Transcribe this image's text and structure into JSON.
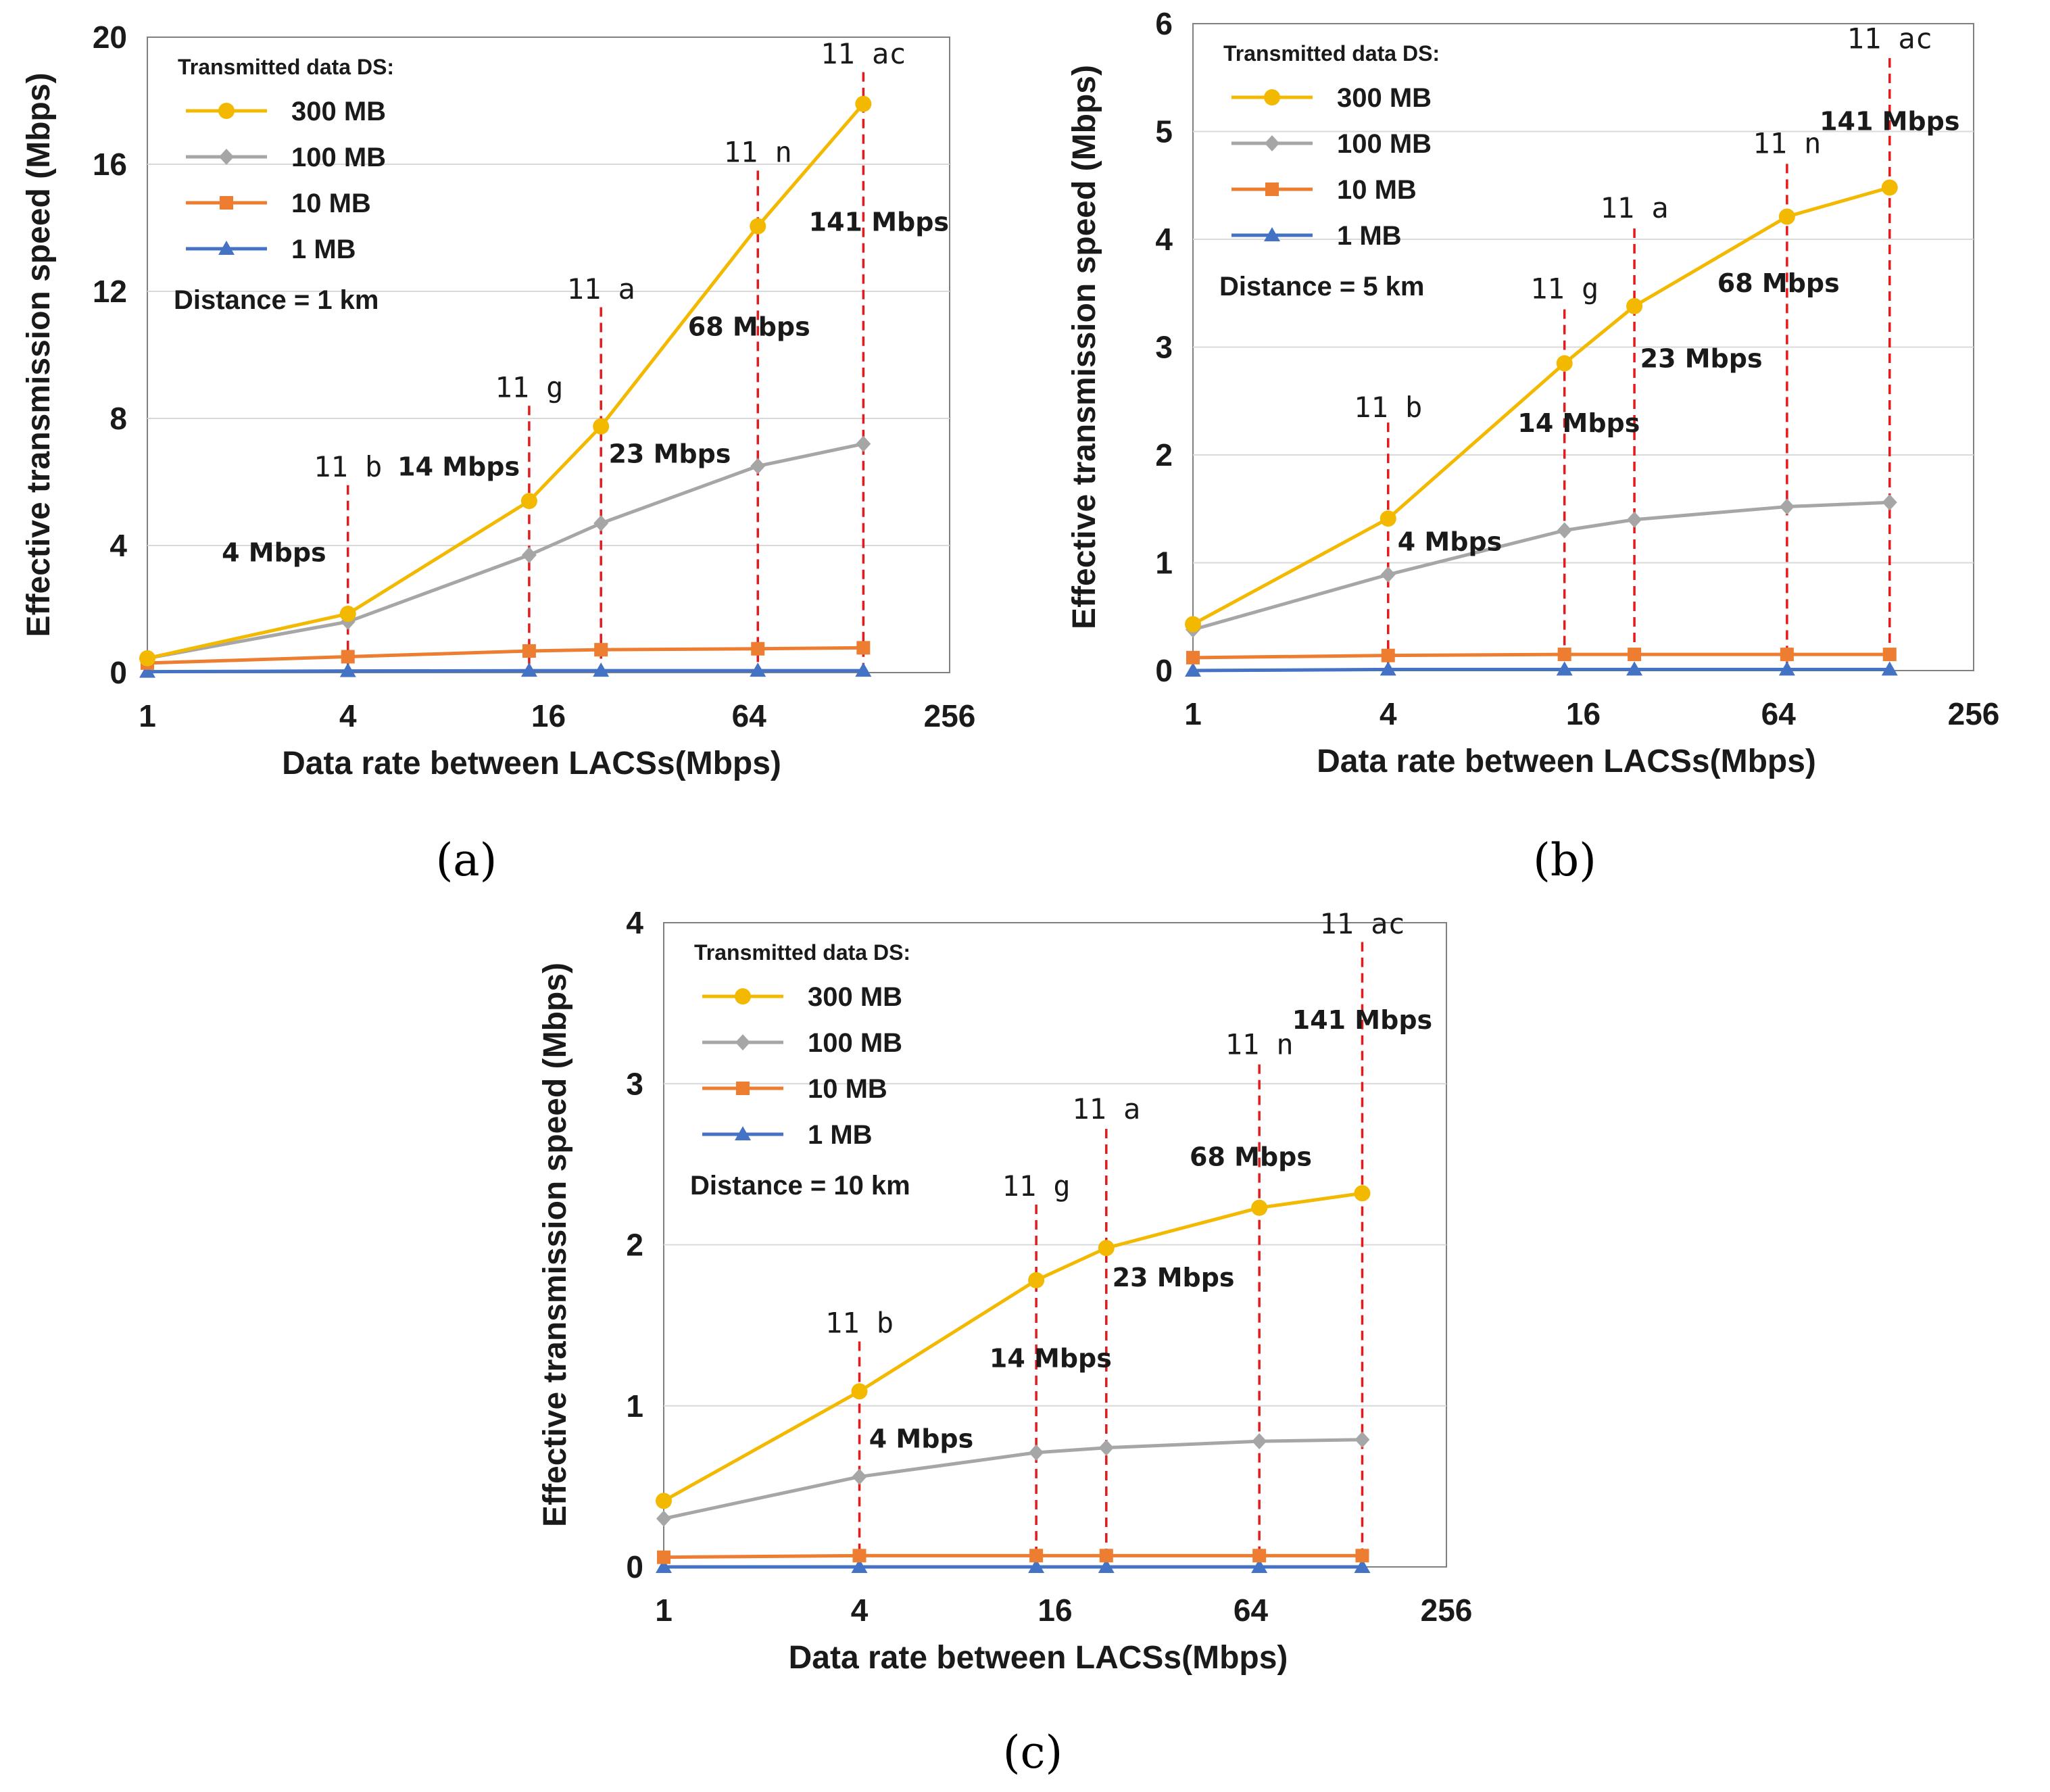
{
  "figure": {
    "colors": {
      "s300": "#F2B900",
      "s100": "#A6A6A6",
      "s10": "#ED7D31",
      "s1": "#4472C4",
      "marker_line": "#E41A1C",
      "grid": "#D9D9D9",
      "axis": "#808080"
    }
  },
  "chart_data": [
    {
      "type": "line",
      "caption": "(a)",
      "xlabel": "Data rate between LACSs(Mbps)",
      "ylabel": "Effective transmission speed (Mbps)",
      "x_scale": "log2",
      "xlim": [
        1,
        256
      ],
      "ylim": [
        0,
        20
      ],
      "xticks": [
        1,
        4,
        16,
        64,
        256
      ],
      "xtick_labels": [
        "1",
        "4",
        "16",
        "64",
        "256"
      ],
      "yticks": [
        0,
        4,
        8,
        12,
        16,
        20
      ],
      "ytick_labels": [
        "0",
        "4",
        "8",
        "12",
        "16",
        "20"
      ],
      "grid": "horizontal",
      "legend_title": "Transmitted data DS:",
      "distance_label": "Distance = 1 km",
      "x": [
        1,
        4,
        14,
        23,
        68,
        141
      ],
      "series": [
        {
          "name": "300 MB",
          "marker": "circle",
          "values": [
            0.45,
            1.85,
            5.4,
            7.75,
            14.05,
            17.9
          ]
        },
        {
          "name": "100 MB",
          "marker": "diamond",
          "values": [
            0.45,
            1.6,
            3.7,
            4.7,
            6.5,
            7.2
          ]
        },
        {
          "name": "10 MB",
          "marker": "square",
          "values": [
            0.3,
            0.5,
            0.68,
            0.72,
            0.75,
            0.78
          ]
        },
        {
          "name": "1 MB",
          "marker": "triangle",
          "values": [
            0.03,
            0.05,
            0.06,
            0.06,
            0.06,
            0.06
          ]
        }
      ],
      "standards": [
        {
          "x": 4,
          "label": "11 b",
          "rate_label": "4 Mbps",
          "line_top": 5.9,
          "label_y": 6.0,
          "rate_x": 2.4,
          "rate_y": 3.8
        },
        {
          "x": 14,
          "label": "11 g",
          "rate_label": "14 Mbps",
          "line_top": 8.4,
          "label_y": 8.5,
          "rate_x": 8.6,
          "rate_y": 6.5
        },
        {
          "x": 23,
          "label": "11 a",
          "rate_label": "23 Mbps",
          "line_top": 11.5,
          "label_y": 11.6,
          "rate_x": 37,
          "rate_y": 6.9
        },
        {
          "x": 68,
          "label": "11 n",
          "rate_label": "68 Mbps",
          "line_top": 15.8,
          "label_y": 15.9,
          "rate_x": 64,
          "rate_y": 10.9
        },
        {
          "x": 141,
          "label": "11 ac",
          "rate_label": "141 Mbps",
          "line_top": 18.9,
          "label_y": 19.0,
          "rate_x": 157,
          "rate_y": 14.2
        }
      ]
    },
    {
      "type": "line",
      "caption": "(b)",
      "xlabel": "Data rate between LACSs(Mbps)",
      "ylabel": "Effective transmission speed (Mbps)",
      "x_scale": "log2",
      "xlim": [
        1,
        256
      ],
      "ylim": [
        0,
        6
      ],
      "xticks": [
        1,
        4,
        16,
        64,
        256
      ],
      "xtick_labels": [
        "1",
        "4",
        "16",
        "64",
        "256"
      ],
      "yticks": [
        0,
        1,
        2,
        3,
        4,
        5,
        6
      ],
      "ytick_labels": [
        "0",
        "1",
        "2",
        "3",
        "4",
        "5",
        "6"
      ],
      "grid": "horizontal",
      "legend_title": "Transmitted data DS:",
      "distance_label": "Distance = 5 km",
      "x": [
        1,
        4,
        14,
        23,
        68,
        141
      ],
      "series": [
        {
          "name": "300 MB",
          "marker": "circle",
          "values": [
            0.43,
            1.41,
            2.85,
            3.38,
            4.21,
            4.48
          ]
        },
        {
          "name": "100 MB",
          "marker": "diamond",
          "values": [
            0.38,
            0.89,
            1.3,
            1.4,
            1.52,
            1.56
          ]
        },
        {
          "name": "10 MB",
          "marker": "square",
          "values": [
            0.12,
            0.14,
            0.15,
            0.15,
            0.15,
            0.15
          ]
        },
        {
          "name": "1 MB",
          "marker": "triangle",
          "values": [
            0.0,
            0.01,
            0.01,
            0.01,
            0.01,
            0.01
          ]
        }
      ],
      "standards": [
        {
          "x": 4,
          "label": "11 b",
          "rate_label": "4 Mbps",
          "line_top": 2.3,
          "label_y": 2.3,
          "rate_x": 6.2,
          "rate_y": 1.2
        },
        {
          "x": 14,
          "label": "11 g",
          "rate_label": "14 Mbps",
          "line_top": 3.35,
          "label_y": 3.4,
          "rate_x": 15.5,
          "rate_y": 2.3
        },
        {
          "x": 23,
          "label": "11 a",
          "rate_label": "23 Mbps",
          "line_top": 4.1,
          "label_y": 4.15,
          "rate_x": 37,
          "rate_y": 2.9
        },
        {
          "x": 68,
          "label": "11 n",
          "rate_label": "68 Mbps",
          "line_top": 4.7,
          "label_y": 4.75,
          "rate_x": 64,
          "rate_y": 3.6
        },
        {
          "x": 141,
          "label": "11 ac",
          "rate_label": "141 Mbps",
          "line_top": 5.68,
          "label_y": 5.72,
          "rate_x": 141,
          "rate_y": 5.1
        }
      ]
    },
    {
      "type": "line",
      "caption": "(c)",
      "xlabel": "Data rate between LACSs(Mbps)",
      "ylabel": "Effective transmission speed (Mbps)",
      "x_scale": "log2",
      "xlim": [
        1,
        256
      ],
      "ylim": [
        0,
        4
      ],
      "xticks": [
        1,
        4,
        16,
        64,
        256
      ],
      "xtick_labels": [
        "1",
        "4",
        "16",
        "64",
        "256"
      ],
      "yticks": [
        0,
        1,
        2,
        3,
        4
      ],
      "ytick_labels": [
        "0",
        "1",
        "2",
        "3",
        "4"
      ],
      "grid": "horizontal",
      "legend_title": "Transmitted data DS:",
      "distance_label": "Distance = 10 km",
      "x": [
        1,
        4,
        14,
        23,
        68,
        141
      ],
      "series": [
        {
          "name": "300 MB",
          "marker": "circle",
          "values": [
            0.41,
            1.09,
            1.78,
            1.98,
            2.23,
            2.32
          ]
        },
        {
          "name": "100 MB",
          "marker": "diamond",
          "values": [
            0.3,
            0.56,
            0.71,
            0.74,
            0.78,
            0.79
          ]
        },
        {
          "name": "10 MB",
          "marker": "square",
          "values": [
            0.06,
            0.07,
            0.07,
            0.07,
            0.07,
            0.07
          ]
        },
        {
          "name": "1 MB",
          "marker": "triangle",
          "values": [
            0.0,
            0.0,
            0.0,
            0.0,
            0.0,
            0.0
          ]
        }
      ],
      "standards": [
        {
          "x": 4,
          "label": "11 b",
          "rate_label": "4 Mbps",
          "line_top": 1.4,
          "label_y": 1.42,
          "rate_x": 6.2,
          "rate_y": 0.8
        },
        {
          "x": 14,
          "label": "11 g",
          "rate_label": "14 Mbps",
          "line_top": 2.25,
          "label_y": 2.27,
          "rate_x": 15.5,
          "rate_y": 1.3
        },
        {
          "x": 23,
          "label": "11 a",
          "rate_label": "23 Mbps",
          "line_top": 2.72,
          "label_y": 2.75,
          "rate_x": 37,
          "rate_y": 1.8
        },
        {
          "x": 68,
          "label": "11 n",
          "rate_label": "68 Mbps",
          "line_top": 3.12,
          "label_y": 3.15,
          "rate_x": 64,
          "rate_y": 2.55
        },
        {
          "x": 141,
          "label": "11 ac",
          "rate_label": "141 Mbps",
          "line_top": 3.88,
          "label_y": 3.9,
          "rate_x": 141,
          "rate_y": 3.4
        }
      ]
    }
  ]
}
